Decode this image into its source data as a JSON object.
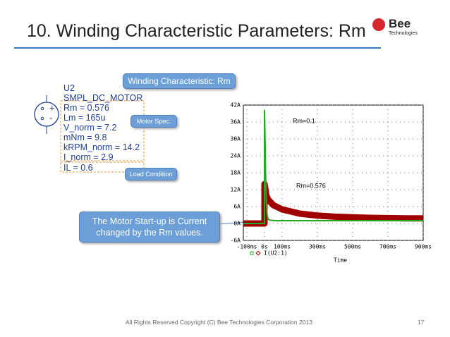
{
  "header": {
    "title": "10. Winding Characteristic Parameters: Rm",
    "logo": "Bee",
    "logo_sub": "Technologies"
  },
  "component": {
    "lines": [
      "U2",
      "SMPL_DC_MOTOR",
      "Rm = 0.576",
      "Lm = 165u",
      "V_norm = 7.2",
      "mNm = 9.8",
      "kRPM_norm = 14.2",
      "I_norm = 2.9"
    ],
    "load": "IL = 0.6"
  },
  "callouts": [
    "Winding Characteristic: Rm",
    "Motor Spec.",
    "Load Condition",
    "The Motor Start-up is Current changed by the Rm values."
  ],
  "chart_data": {
    "type": "line",
    "x_label": "Time",
    "legend_label": "I(U2:1)",
    "grid": true,
    "xlim": [
      -120,
      900
    ],
    "xticks": [
      {
        "value": -100,
        "label": "-100ms"
      },
      {
        "value": 0,
        "label": "0s"
      },
      {
        "value": 100,
        "label": "100ms"
      },
      {
        "value": 300,
        "label": "300ms"
      },
      {
        "value": 500,
        "label": "500ms"
      },
      {
        "value": 700,
        "label": "700ms"
      },
      {
        "value": 900,
        "label": "900ms"
      }
    ],
    "ylim": [
      -6,
      42
    ],
    "yticks": [
      {
        "value": -6,
        "label": "-6A"
      },
      {
        "value": 0,
        "label": "0A"
      },
      {
        "value": 6,
        "label": "6A"
      },
      {
        "value": 12,
        "label": "12A"
      },
      {
        "value": 18,
        "label": "18A"
      },
      {
        "value": 24,
        "label": "24A"
      },
      {
        "value": 30,
        "label": "30A"
      },
      {
        "value": 36,
        "label": "36A"
      },
      {
        "value": 42,
        "label": "42A"
      }
    ],
    "series": [
      {
        "name": "Rm=0.576",
        "color": "#a00000",
        "x": [
          -120,
          0,
          0,
          5,
          10,
          20,
          50,
          100,
          200,
          300,
          400,
          500,
          600,
          700,
          800,
          900
        ],
        "values": [
          0,
          0,
          14,
          12,
          10,
          8.5,
          6.5,
          5,
          3.5,
          2.8,
          2.4,
          2.2,
          2,
          1.9,
          1.8,
          1.8
        ]
      },
      {
        "name": "Rm=0.1",
        "color": "#22aa22",
        "x": [
          -120,
          0,
          0,
          3,
          6,
          10,
          15,
          20,
          30,
          60,
          100,
          300,
          500,
          700,
          900
        ],
        "values": [
          0,
          0,
          40,
          30,
          18,
          8,
          3,
          1.5,
          1.2,
          1,
          1,
          1,
          1,
          1,
          1
        ]
      }
    ]
  },
  "footer": {
    "copyright": "All Rights Reserved Copyright (C) Bee Technologies Corporation 2013",
    "page": "17"
  }
}
